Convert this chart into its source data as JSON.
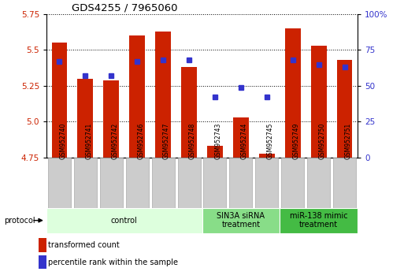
{
  "title": "GDS4255 / 7965060",
  "samples": [
    "GSM952740",
    "GSM952741",
    "GSM952742",
    "GSM952746",
    "GSM952747",
    "GSM952748",
    "GSM952743",
    "GSM952744",
    "GSM952745",
    "GSM952749",
    "GSM952750",
    "GSM952751"
  ],
  "transformed_count": [
    5.55,
    5.3,
    5.29,
    5.6,
    5.63,
    5.38,
    4.83,
    5.03,
    4.78,
    5.65,
    5.53,
    5.43
  ],
  "percentile_rank": [
    67,
    57,
    57,
    67,
    68,
    68,
    42,
    49,
    42,
    68,
    65,
    63
  ],
  "ylim_left": [
    4.75,
    5.75
  ],
  "ylim_right": [
    0,
    100
  ],
  "yticks_left": [
    4.75,
    5.0,
    5.25,
    5.5,
    5.75
  ],
  "yticks_right": [
    0,
    25,
    50,
    75,
    100
  ],
  "bar_color": "#cc2200",
  "dot_color": "#3333cc",
  "grid_color": "#000000",
  "protocol_groups": [
    {
      "label": "control",
      "start": 0,
      "end": 6,
      "color": "#ddffdd"
    },
    {
      "label": "SIN3A siRNA\ntreatment",
      "start": 6,
      "end": 9,
      "color": "#88dd88"
    },
    {
      "label": "miR-138 mimic\ntreatment",
      "start": 9,
      "end": 12,
      "color": "#44bb44"
    }
  ],
  "legend_bar_label": "transformed count",
  "legend_dot_label": "percentile rank within the sample",
  "tick_label_color_left": "#cc2200",
  "tick_label_color_right": "#3333cc",
  "bg_color": "#ffffff",
  "label_box_color": "#cccccc",
  "label_box_edge": "#aaaaaa"
}
